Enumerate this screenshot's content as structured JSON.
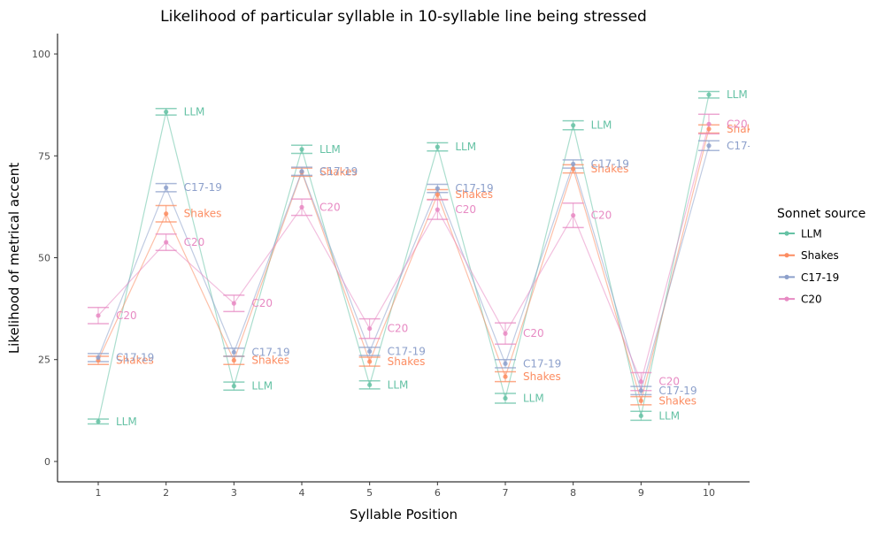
{
  "chart_data": {
    "type": "line",
    "title": "Likelihood of particular syllable in 10-syllable line being stressed",
    "xlabel": "Syllable Position",
    "ylabel": "Likelihood of metrical accent",
    "x": [
      1,
      2,
      3,
      4,
      5,
      6,
      7,
      8,
      9,
      10
    ],
    "xlim": [
      0.4,
      10.6
    ],
    "ylim": [
      -5,
      105
    ],
    "yticks": [
      0,
      25,
      50,
      75,
      100
    ],
    "grid": false,
    "legend": {
      "title": "Sonnet source",
      "position": "right"
    },
    "series": [
      {
        "name": "LLM",
        "color": "#66c2a5",
        "values": [
          9.8,
          85.8,
          18.5,
          76.6,
          18.8,
          77.2,
          15.5,
          82.5,
          11.2,
          90.0
        ],
        "lower": [
          9.2,
          85.0,
          17.5,
          75.6,
          17.8,
          76.2,
          14.3,
          81.4,
          10.1,
          89.2
        ],
        "upper": [
          10.4,
          86.6,
          19.5,
          77.6,
          19.8,
          78.2,
          16.7,
          83.6,
          12.3,
          90.8
        ]
      },
      {
        "name": "Shakes",
        "color": "#fc8d62",
        "values": [
          24.8,
          60.8,
          24.8,
          71.0,
          24.5,
          65.5,
          20.8,
          71.8,
          14.9,
          81.6
        ],
        "lower": [
          23.8,
          58.8,
          23.8,
          70.0,
          23.4,
          64.3,
          19.6,
          70.8,
          13.9,
          80.6
        ],
        "upper": [
          25.8,
          62.8,
          25.8,
          72.0,
          25.6,
          66.7,
          22.0,
          72.8,
          15.9,
          82.6
        ]
      },
      {
        "name": "C17-19",
        "color": "#8da0cb",
        "values": [
          25.5,
          67.2,
          26.8,
          71.2,
          27.0,
          67.0,
          24.0,
          73.0,
          17.4,
          77.5
        ],
        "lower": [
          24.5,
          66.2,
          25.8,
          70.2,
          26.0,
          66.0,
          23.0,
          72.0,
          16.4,
          76.3
        ],
        "upper": [
          26.5,
          68.2,
          27.8,
          72.2,
          28.0,
          68.0,
          25.0,
          74.0,
          18.4,
          78.7
        ]
      },
      {
        "name": "C20",
        "color": "#e78ac3",
        "values": [
          35.8,
          53.8,
          38.8,
          62.4,
          32.6,
          61.8,
          31.4,
          60.4,
          19.6,
          82.8
        ],
        "lower": [
          33.8,
          51.8,
          36.8,
          60.4,
          30.2,
          59.4,
          28.8,
          57.4,
          17.4,
          80.4
        ],
        "upper": [
          37.8,
          55.8,
          40.8,
          64.4,
          35.0,
          64.2,
          34.0,
          63.4,
          21.8,
          85.2
        ]
      }
    ]
  }
}
